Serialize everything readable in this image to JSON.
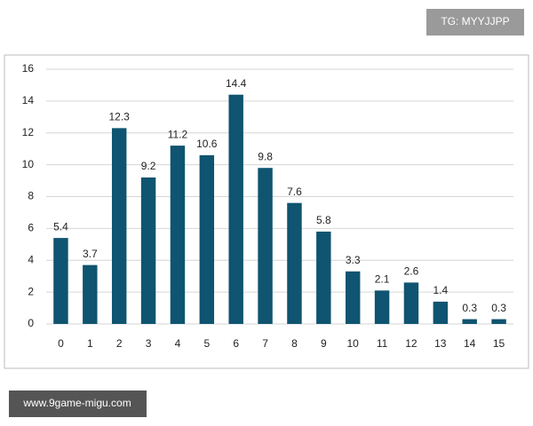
{
  "chart_data": {
    "type": "bar",
    "categories": [
      "0",
      "1",
      "2",
      "3",
      "4",
      "5",
      "6",
      "7",
      "8",
      "9",
      "10",
      "11",
      "12",
      "13",
      "14",
      "15"
    ],
    "values": [
      5.4,
      3.7,
      12.3,
      9.2,
      11.2,
      10.6,
      14.4,
      9.8,
      7.6,
      5.8,
      3.3,
      2.1,
      2.6,
      1.4,
      0.3,
      0.3
    ],
    "color": "#0f5470",
    "ylim": [
      0,
      16
    ],
    "yticks": [
      0,
      2,
      4,
      6,
      8,
      10,
      12,
      14,
      16
    ],
    "grid": true
  },
  "badges": {
    "top": "TG: MYYJJPP",
    "bottom": "www.9game-migu.com"
  }
}
